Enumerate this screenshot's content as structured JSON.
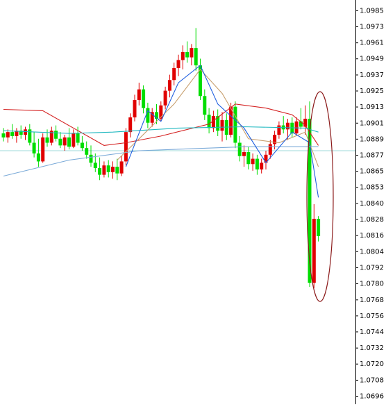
{
  "chart_data": {
    "type": "candlestick",
    "ylim": [
      1.069,
      1.0993
    ],
    "yticks": [
      {
        "value": 1.0985,
        "label": "1.0985"
      },
      {
        "value": 1.0973,
        "label": "1.0973"
      },
      {
        "value": 1.09609,
        "label": "1.0961"
      },
      {
        "value": 1.09489,
        "label": "1.0949"
      },
      {
        "value": 1.09368,
        "label": "1.0937"
      },
      {
        "value": 1.09248,
        "label": "1.0925"
      },
      {
        "value": 1.09128,
        "label": "1.0913"
      },
      {
        "value": 1.09007,
        "label": "1.0901"
      },
      {
        "value": 1.08887,
        "label": "1.0889"
      },
      {
        "value": 1.08766,
        "label": "1.0877"
      },
      {
        "value": 1.08646,
        "label": "1.0865"
      },
      {
        "value": 1.08526,
        "label": "1.0853"
      },
      {
        "value": 1.08405,
        "label": "1.0840"
      },
      {
        "value": 1.08285,
        "label": "1.0828"
      },
      {
        "value": 1.08164,
        "label": "1.0816"
      },
      {
        "value": 1.08044,
        "label": "1.0804"
      },
      {
        "value": 1.07923,
        "label": "1.0792"
      },
      {
        "value": 1.07803,
        "label": "1.0780"
      },
      {
        "value": 1.07682,
        "label": "1.0768"
      },
      {
        "value": 1.07562,
        "label": "1.0756"
      },
      {
        "value": 1.07442,
        "label": "1.0744"
      },
      {
        "value": 1.07321,
        "label": "1.0732"
      },
      {
        "value": 1.07201,
        "label": "1.0720"
      },
      {
        "value": 1.0708,
        "label": "1.0708"
      },
      {
        "value": 1.0696,
        "label": "1.0696"
      }
    ],
    "up_color": "#e00000",
    "down_color": "#00dd00",
    "candles": {
      "open": [
        1.0893,
        1.089,
        1.0894,
        1.0891,
        1.0895,
        1.0892,
        1.0896,
        1.0886,
        1.0878,
        1.0872,
        1.089,
        1.0886,
        1.0895,
        1.0889,
        1.0884,
        1.089,
        1.0883,
        1.0893,
        1.0886,
        1.0882,
        1.0877,
        1.0871,
        1.0867,
        1.0862,
        1.0869,
        1.0864,
        1.0868,
        1.0863,
        1.0872,
        1.0894,
        1.0905,
        1.0918,
        1.0926,
        1.0912,
        1.0901,
        1.0909,
        1.0904,
        1.0914,
        1.0925,
        1.0933,
        1.0942,
        1.0948,
        1.0954,
        1.095,
        1.0957,
        1.0944,
        1.0921,
        1.0907,
        1.0897,
        1.0906,
        1.0895,
        1.0903,
        1.0892,
        1.0913,
        1.0886,
        1.0876,
        1.0879,
        1.087,
        1.0874,
        1.0866,
        1.0871,
        1.0877,
        1.0885,
        1.0892,
        1.0899,
        1.0896,
        1.0901,
        1.0893,
        1.0902,
        1.0898,
        1.0904,
        1.0781,
        1.0829
      ],
      "high": [
        1.0897,
        1.0896,
        1.09,
        1.0897,
        1.0899,
        1.0898,
        1.09,
        1.0894,
        1.0889,
        1.0893,
        1.0896,
        1.0898,
        1.0899,
        1.0894,
        1.0892,
        1.0897,
        1.0896,
        1.0898,
        1.0891,
        1.0887,
        1.0884,
        1.0878,
        1.0875,
        1.0872,
        1.0873,
        1.0872,
        1.0874,
        1.0876,
        1.0897,
        1.0908,
        1.0922,
        1.0931,
        1.0929,
        1.0916,
        1.0912,
        1.0915,
        1.0917,
        1.0928,
        1.0937,
        1.0946,
        1.0952,
        1.0959,
        1.0962,
        1.096,
        1.0972,
        1.0949,
        1.0926,
        1.0912,
        1.091,
        1.0911,
        1.0909,
        1.0908,
        1.0916,
        1.0917,
        1.0891,
        1.0884,
        1.0883,
        1.0878,
        1.0877,
        1.0874,
        1.088,
        1.0888,
        1.0895,
        1.0902,
        1.0906,
        1.0904,
        1.0905,
        1.0905,
        1.0912,
        1.0914,
        1.0917,
        1.084,
        1.0831
      ],
      "low": [
        1.0887,
        1.0886,
        1.0889,
        1.0886,
        1.0889,
        1.0888,
        1.0884,
        1.0875,
        1.0868,
        1.0871,
        1.0883,
        1.0884,
        1.0887,
        1.0882,
        1.088,
        1.0881,
        1.0882,
        1.0884,
        1.088,
        1.0874,
        1.0868,
        1.0864,
        1.0858,
        1.086,
        1.086,
        1.0859,
        1.0858,
        1.0861,
        1.0869,
        1.089,
        1.0902,
        1.0914,
        1.0908,
        1.0897,
        1.0898,
        1.09,
        1.0902,
        1.0911,
        1.092,
        1.0929,
        1.0936,
        1.0941,
        1.0946,
        1.0944,
        1.094,
        1.0918,
        1.0903,
        1.0893,
        1.0894,
        1.0891,
        1.0887,
        1.0888,
        1.089,
        1.0882,
        1.0872,
        1.0868,
        1.0866,
        1.0865,
        1.0862,
        1.0863,
        1.0866,
        1.0874,
        1.0881,
        1.0889,
        1.0893,
        1.0888,
        1.089,
        1.0891,
        1.0896,
        1.0892,
        1.0778,
        1.0777,
        1.0812
      ],
      "close": [
        1.089,
        1.0894,
        1.0891,
        1.0895,
        1.0892,
        1.0896,
        1.0886,
        1.0878,
        1.0872,
        1.089,
        1.0886,
        1.0895,
        1.0889,
        1.0884,
        1.089,
        1.0883,
        1.0893,
        1.0886,
        1.0882,
        1.0877,
        1.0871,
        1.0867,
        1.0862,
        1.0869,
        1.0864,
        1.0868,
        1.0863,
        1.0872,
        1.0894,
        1.0905,
        1.0918,
        1.0926,
        1.0912,
        1.0901,
        1.0909,
        1.0904,
        1.0914,
        1.0925,
        1.0933,
        1.0942,
        1.0948,
        1.0954,
        1.095,
        1.0957,
        1.0944,
        1.0921,
        1.0907,
        1.0897,
        1.0906,
        1.0895,
        1.0903,
        1.0892,
        1.0913,
        1.0886,
        1.0876,
        1.0879,
        1.087,
        1.0874,
        1.0866,
        1.0871,
        1.0877,
        1.0885,
        1.0892,
        1.0899,
        1.0896,
        1.0901,
        1.0893,
        1.0902,
        1.0898,
        1.0904,
        1.0781,
        1.0829,
        1.0816
      ]
    },
    "lines": [
      {
        "color": "#d42020",
        "x": [
          0,
          9,
          23,
          28,
          36,
          47,
          53,
          60,
          66,
          69,
          72
        ],
        "values": [
          1.0911,
          1.091,
          1.0884,
          1.0886,
          1.0891,
          1.09,
          1.0915,
          1.0912,
          1.0907,
          1.0899,
          1.0884
        ]
      },
      {
        "color": "#20b8c0",
        "x": [
          0,
          15,
          25,
          40,
          55,
          69,
          72
        ],
        "values": [
          1.0895,
          1.0893,
          1.0894,
          1.0897,
          1.0898,
          1.0897,
          1.0894
        ]
      },
      {
        "color": "#7aaad8",
        "x": [
          0,
          15,
          31,
          55,
          72
        ],
        "values": [
          1.0861,
          1.0873,
          1.088,
          1.0883,
          1.0883
        ]
      },
      {
        "color": "#c8a070",
        "x": [
          26,
          31,
          39,
          45,
          50,
          56,
          63,
          69,
          72
        ],
        "values": [
          1.0873,
          1.0889,
          1.0915,
          1.0941,
          1.0923,
          1.0889,
          1.0886,
          1.0894,
          1.0868
        ]
      },
      {
        "color": "#2060e0",
        "x": [
          28,
          33,
          36,
          40,
          45,
          49,
          55,
          60,
          66,
          70,
          72
        ],
        "values": [
          1.0868,
          1.091,
          1.0902,
          1.0931,
          1.0944,
          1.0915,
          1.0897,
          1.0871,
          1.0894,
          1.0886,
          1.0845
        ]
      }
    ],
    "hlines": [
      {
        "value": 1.088,
        "color": "#9fd8d8"
      }
    ]
  }
}
